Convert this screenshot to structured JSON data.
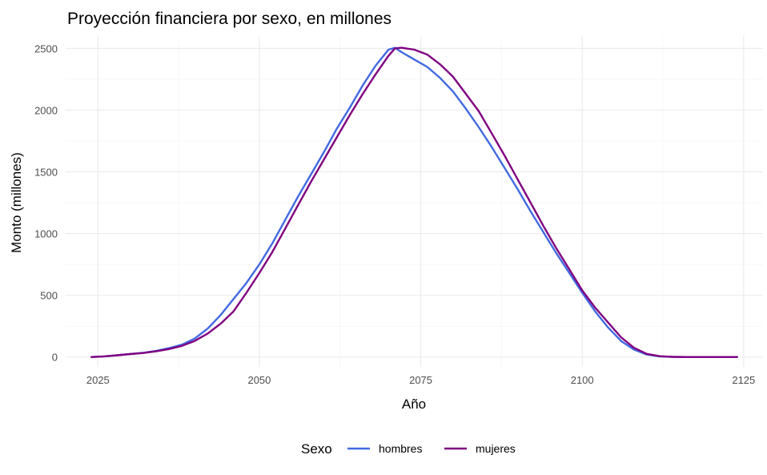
{
  "chart_data": {
    "type": "line",
    "title": "Proyección financiera por sexo, en millones",
    "xlabel": "Año",
    "ylabel": "Monto (millones)",
    "xlim": [
      2020,
      2128
    ],
    "ylim": [
      -80,
      2600
    ],
    "x_ticks": [
      2025,
      2050,
      2075,
      2100,
      2125
    ],
    "y_ticks": [
      0,
      500,
      1000,
      1500,
      2000,
      2500
    ],
    "grid": true,
    "legend": {
      "title": "Sexo",
      "position": "bottom"
    },
    "series": [
      {
        "name": "hombres",
        "color": "#4169e1",
        "x": [
          2024,
          2026,
          2028,
          2030,
          2032,
          2034,
          2036,
          2038,
          2040,
          2042,
          2044,
          2046,
          2048,
          2050,
          2052,
          2054,
          2056,
          2058,
          2060,
          2062,
          2064,
          2066,
          2068,
          2070,
          2071,
          2072,
          2074,
          2076,
          2078,
          2080,
          2082,
          2084,
          2086,
          2088,
          2090,
          2092,
          2094,
          2096,
          2098,
          2100,
          2102,
          2104,
          2106,
          2108,
          2110,
          2112,
          2114,
          2116,
          2118,
          2120,
          2122,
          2124
        ],
        "values": [
          0,
          5,
          14,
          24,
          34,
          50,
          72,
          100,
          150,
          230,
          340,
          470,
          600,
          750,
          920,
          1110,
          1300,
          1480,
          1660,
          1850,
          2020,
          2200,
          2360,
          2490,
          2505,
          2470,
          2410,
          2350,
          2260,
          2150,
          2010,
          1860,
          1700,
          1530,
          1360,
          1180,
          1010,
          840,
          680,
          520,
          370,
          240,
          130,
          60,
          20,
          5,
          1,
          0,
          0,
          0,
          0,
          0
        ]
      },
      {
        "name": "mujeres",
        "color": "#800080",
        "x": [
          2024,
          2026,
          2028,
          2030,
          2032,
          2034,
          2036,
          2038,
          2040,
          2042,
          2044,
          2046,
          2048,
          2050,
          2052,
          2054,
          2056,
          2058,
          2060,
          2062,
          2064,
          2066,
          2068,
          2070,
          2071,
          2072,
          2074,
          2076,
          2078,
          2080,
          2082,
          2084,
          2086,
          2088,
          2090,
          2092,
          2094,
          2096,
          2098,
          2100,
          2102,
          2104,
          2106,
          2108,
          2110,
          2112,
          2114,
          2116,
          2118,
          2120,
          2122,
          2124
        ],
        "values": [
          0,
          5,
          14,
          24,
          32,
          46,
          64,
          90,
          130,
          190,
          270,
          370,
          520,
          680,
          850,
          1040,
          1230,
          1420,
          1600,
          1780,
          1960,
          2130,
          2290,
          2440,
          2500,
          2505,
          2490,
          2450,
          2370,
          2270,
          2130,
          1990,
          1810,
          1630,
          1440,
          1250,
          1060,
          880,
          710,
          540,
          400,
          280,
          160,
          75,
          25,
          6,
          1,
          0,
          0,
          0,
          0,
          0
        ]
      }
    ]
  }
}
